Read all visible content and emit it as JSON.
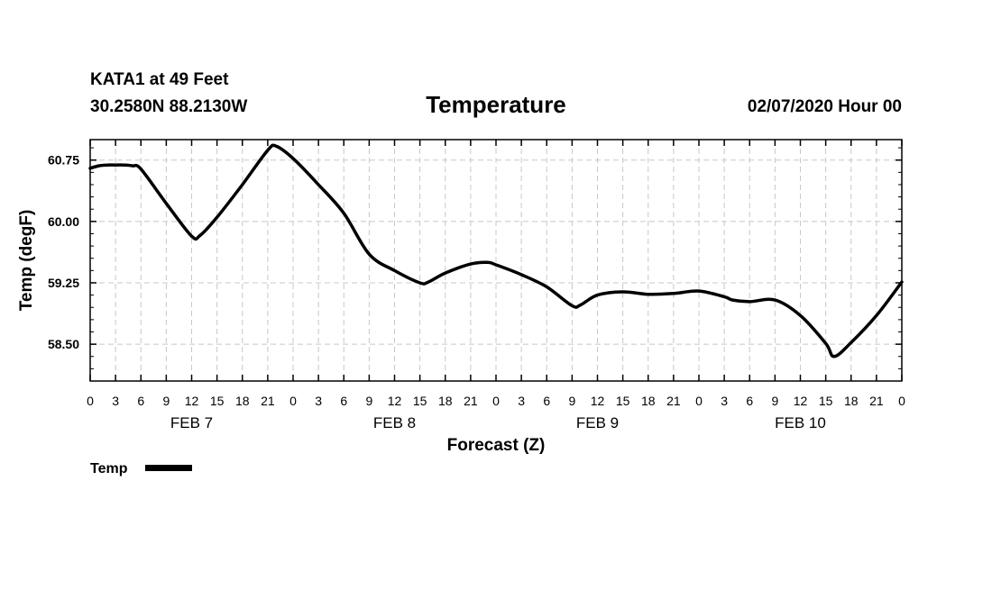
{
  "header": {
    "station": "KATA1 at 49 Feet",
    "coords": "30.2580N 88.2130W",
    "title": "Temperature",
    "run": "02/07/2020 Hour 00"
  },
  "chart_data": {
    "type": "line",
    "title": "Temperature",
    "xlabel": "Forecast (Z)",
    "ylabel": "Temp (degF)",
    "ylim": [
      58.05,
      61.0
    ],
    "xlim": [
      0,
      96
    ],
    "yticks": [
      "60.75",
      "60.00",
      "59.25",
      "58.50"
    ],
    "ytick_values": [
      60.75,
      60.0,
      59.25,
      58.5
    ],
    "xtick_labels": [
      "0",
      "3",
      "6",
      "9",
      "12",
      "15",
      "18",
      "21",
      "0",
      "3",
      "6",
      "9",
      "12",
      "15",
      "18",
      "21",
      "0",
      "3",
      "6",
      "9",
      "12",
      "15",
      "18",
      "21",
      "0",
      "3",
      "6",
      "9",
      "12",
      "15",
      "18",
      "21",
      "0"
    ],
    "day_labels": [
      {
        "label": "FEB 7",
        "hour": 12
      },
      {
        "label": "FEB 8",
        "hour": 36
      },
      {
        "label": "FEB 9",
        "hour": 60
      },
      {
        "label": "FEB 10",
        "hour": 84
      }
    ],
    "grid": true,
    "legend": "bottom-left",
    "series": [
      {
        "name": "Temp",
        "color": "#000000",
        "x": [
          0,
          1,
          2,
          3,
          4,
          5,
          6,
          9,
          12,
          13,
          15,
          18,
          21,
          22,
          24,
          27,
          30,
          33,
          36,
          39,
          40,
          42,
          45,
          47,
          48,
          51,
          54,
          57,
          58,
          60,
          63,
          66,
          69,
          72,
          75,
          76,
          78,
          81,
          84,
          87,
          88,
          90,
          93,
          96
        ],
        "y": [
          60.65,
          60.68,
          60.69,
          60.69,
          60.69,
          60.68,
          60.64,
          60.22,
          59.82,
          59.83,
          60.05,
          60.45,
          60.87,
          60.92,
          60.77,
          60.45,
          60.1,
          59.6,
          59.4,
          59.25,
          59.26,
          59.37,
          59.48,
          59.5,
          59.47,
          59.35,
          59.2,
          58.97,
          58.98,
          59.1,
          59.14,
          59.11,
          59.12,
          59.15,
          59.08,
          59.04,
          59.02,
          59.04,
          58.85,
          58.51,
          58.35,
          58.52,
          58.85,
          59.26
        ]
      }
    ]
  }
}
